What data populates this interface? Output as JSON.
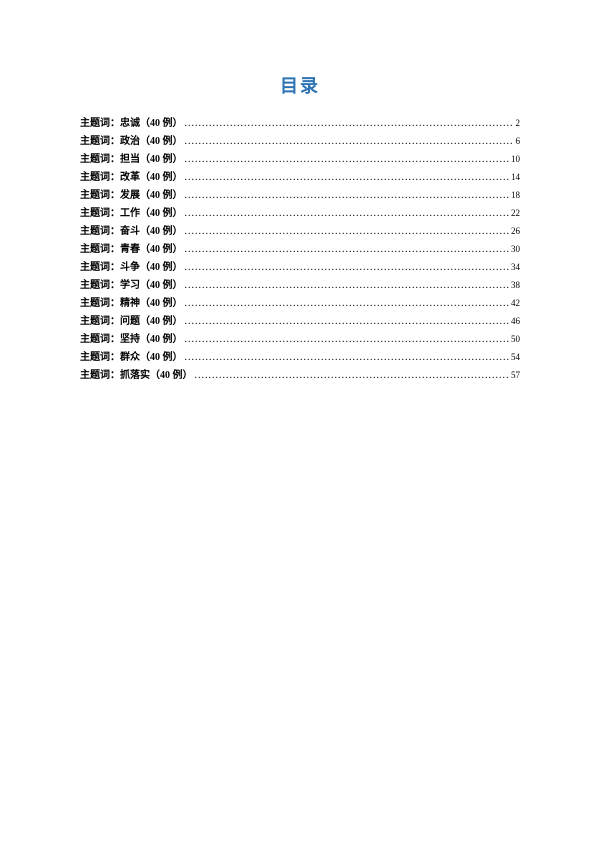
{
  "title": "目录",
  "toc": {
    "prefix": "主题词：",
    "suffix": "（40 例）",
    "entries": [
      {
        "term": "忠诚",
        "page": "2"
      },
      {
        "term": "政治",
        "page": "6"
      },
      {
        "term": "担当",
        "page": "10"
      },
      {
        "term": "改革",
        "page": "14"
      },
      {
        "term": "发展",
        "page": "18"
      },
      {
        "term": "工作",
        "page": "22"
      },
      {
        "term": "奋斗",
        "page": "26"
      },
      {
        "term": "青春",
        "page": "30"
      },
      {
        "term": "斗争",
        "page": "34"
      },
      {
        "term": "学习",
        "page": "38"
      },
      {
        "term": "精神",
        "page": "42"
      },
      {
        "term": "问题",
        "page": "46"
      },
      {
        "term": "坚持",
        "page": "50"
      },
      {
        "term": "群众",
        "page": "54"
      },
      {
        "term": "抓落实",
        "page": "57"
      }
    ]
  },
  "styles": {
    "title_color": "#2e74b5",
    "text_color": "#000000",
    "background_color": "#ffffff",
    "title_fontsize": 18,
    "entry_fontsize": 10
  }
}
